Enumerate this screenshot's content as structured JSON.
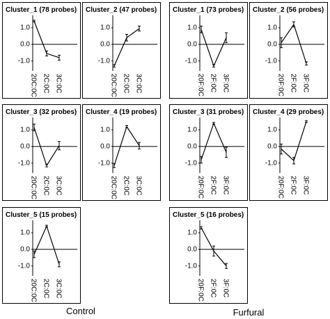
{
  "panel_labels": {
    "control": "Control",
    "furfural": "Furfural"
  },
  "chart_data": [
    {
      "type": "line",
      "title": "Cluster_1 (78 probes)",
      "categories": [
        "20C:0C",
        "2C:0C",
        "3C:0C"
      ],
      "series": [
        {
          "color": "#000000",
          "values": [
            1.4,
            -0.55,
            -0.8
          ],
          "errors": [
            0.05,
            0.15,
            0.15
          ]
        }
      ],
      "ylim": [
        -1.6,
        1.75
      ],
      "yticks": [
        {
          "value": 1,
          "label": "1.0"
        },
        {
          "value": 0,
          "label": "0.0"
        },
        {
          "value": -1,
          "label": "-1.0"
        }
      ]
    },
    {
      "type": "line",
      "title": "Cluster_2 (47 probes)",
      "categories": [
        "20C:0C",
        "2C:0C",
        "3C:0C"
      ],
      "series": [
        {
          "color": "#000000",
          "values": [
            -1.3,
            0.4,
            0.95
          ],
          "errors": [
            0.07,
            0.2,
            0.15
          ]
        }
      ],
      "ylim": [
        -1.6,
        1.75
      ],
      "yticks": [
        {
          "value": 1,
          "label": "1.0"
        },
        {
          "value": 0,
          "label": "0.0"
        },
        {
          "value": -1,
          "label": "-1.0"
        }
      ]
    },
    {
      "type": "line",
      "title": "Cluster_3 (32 probes)",
      "categories": [
        "20C:0C",
        "2C:0C",
        "3C:0C"
      ],
      "series": [
        {
          "color": "#000000",
          "values": [
            1.15,
            -1.15,
            0.05
          ],
          "errors": [
            0.2,
            0.08,
            0.25
          ]
        }
      ],
      "ylim": [
        -1.6,
        1.75
      ],
      "yticks": [
        {
          "value": 1,
          "label": "1.0"
        },
        {
          "value": 0,
          "label": "0.0"
        },
        {
          "value": -1,
          "label": "-1.0"
        }
      ]
    },
    {
      "type": "line",
      "title": "Cluster_4 (19 probes)",
      "categories": [
        "20C:0C",
        "2C:0C",
        "3C:0C"
      ],
      "series": [
        {
          "color": "#000000",
          "values": [
            -1.15,
            1.2,
            0.05
          ],
          "errors": [
            0.12,
            0.07,
            0.2
          ]
        }
      ],
      "ylim": [
        -1.6,
        1.75
      ],
      "yticks": [
        {
          "value": 1,
          "label": "1.0"
        },
        {
          "value": 0,
          "label": "0.0"
        },
        {
          "value": -1,
          "label": "-1.0"
        }
      ]
    },
    {
      "type": "line",
      "title": "Cluster_5 (15 probes)",
      "categories": [
        "20C:0C",
        "2C:0C",
        "3C:0C"
      ],
      "series": [
        {
          "color": "#000000",
          "values": [
            -0.3,
            1.4,
            -0.9
          ],
          "errors": [
            0.2,
            0.05,
            0.15
          ]
        }
      ],
      "ylim": [
        -1.6,
        1.75
      ],
      "yticks": [
        {
          "value": 1,
          "label": "1.0"
        },
        {
          "value": 0,
          "label": "0.0"
        },
        {
          "value": -1,
          "label": "-1.0"
        }
      ]
    },
    {
      "type": "line",
      "title": "Cluster_1 (73 probes)",
      "categories": [
        "20F:0C",
        "2F:0C",
        "3F:0C"
      ],
      "series": [
        {
          "color": "#000000",
          "values": [
            0.9,
            -1.3,
            0.4
          ],
          "errors": [
            0.2,
            0.07,
            0.3
          ]
        }
      ],
      "ylim": [
        -1.6,
        1.75
      ],
      "yticks": [
        {
          "value": 1,
          "label": "1.0"
        },
        {
          "value": 0,
          "label": "0.0"
        },
        {
          "value": -1,
          "label": "-1.0"
        }
      ]
    },
    {
      "type": "line",
      "title": "Cluster_2 (56 probes)",
      "categories": [
        "20F:0C",
        "2F:0C",
        "3F:0C"
      ],
      "series": [
        {
          "color": "#000000",
          "values": [
            0.1,
            1.2,
            -1.15
          ],
          "errors": [
            0.3,
            0.15,
            0.1
          ]
        }
      ],
      "ylim": [
        -1.6,
        1.75
      ],
      "yticks": [
        {
          "value": 1,
          "label": "1.0"
        },
        {
          "value": 0,
          "label": "0.0"
        },
        {
          "value": -1,
          "label": "-1.0"
        }
      ]
    },
    {
      "type": "line",
      "title": "Cluster_3 (31 probes)",
      "categories": [
        "20F:0C",
        "2F:0C",
        "3F:0C"
      ],
      "series": [
        {
          "color": "#000000",
          "values": [
            -0.8,
            1.4,
            -0.35
          ],
          "errors": [
            0.2,
            0.05,
            0.3
          ]
        }
      ],
      "ylim": [
        -1.6,
        1.75
      ],
      "yticks": [
        {
          "value": 1,
          "label": "1.0"
        },
        {
          "value": 0,
          "label": "0.0"
        },
        {
          "value": -1,
          "label": "-1.0"
        }
      ]
    },
    {
      "type": "line",
      "title": "Cluster_4 (29 probes)",
      "categories": [
        "20F:0C",
        "2F:0C",
        "3F:0C"
      ],
      "series": [
        {
          "color": "#000000",
          "values": [
            -0.15,
            -0.85,
            1.5
          ],
          "errors": [
            0.3,
            0.2,
            0.05
          ]
        }
      ],
      "ylim": [
        -1.6,
        1.75
      ],
      "yticks": [
        {
          "value": 1,
          "label": "1.0"
        },
        {
          "value": 0,
          "label": "0.0"
        },
        {
          "value": -1,
          "label": "-1.0"
        }
      ]
    },
    {
      "type": "line",
      "title": "Cluster_5 (16 probes)",
      "categories": [
        "20F:0C",
        "2F:0C",
        "3F:0C"
      ],
      "series": [
        {
          "color": "#000000",
          "values": [
            1.3,
            -0.1,
            -1.0
          ],
          "errors": [
            0.07,
            0.3,
            0.15
          ]
        }
      ],
      "ylim": [
        -1.6,
        1.75
      ],
      "yticks": [
        {
          "value": 1,
          "label": "1.0"
        },
        {
          "value": 0,
          "label": "0.0"
        },
        {
          "value": -1,
          "label": "-1.0"
        }
      ]
    }
  ]
}
